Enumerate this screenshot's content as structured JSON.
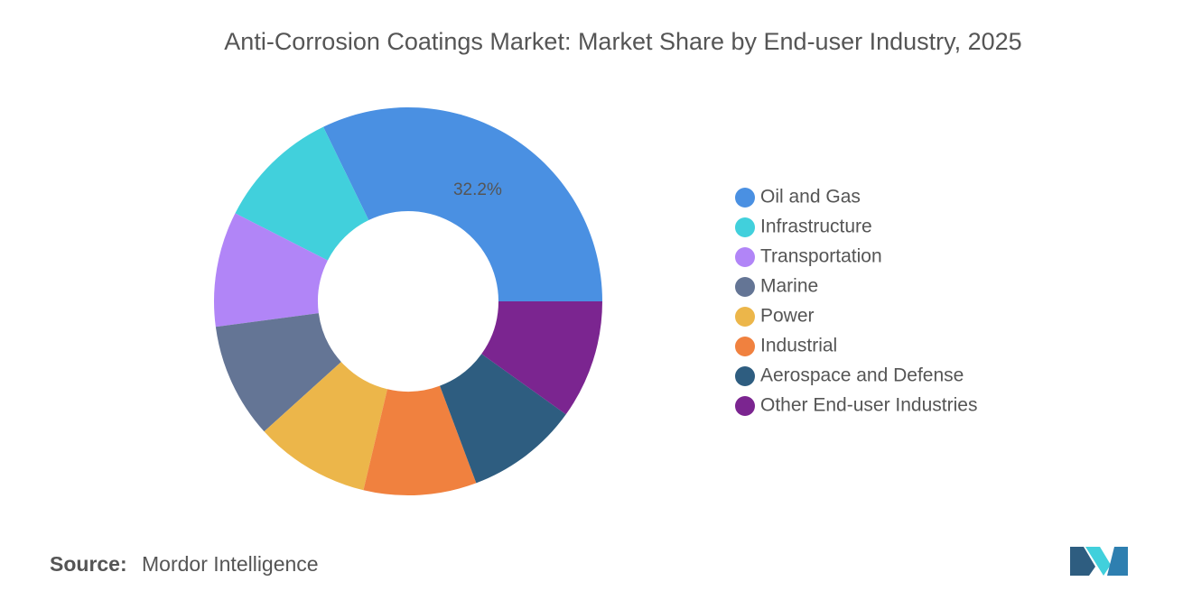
{
  "chart_data": {
    "type": "donut",
    "title": "Anti-Corrosion Coatings Market: Market Share by End-user Industry, 2025",
    "categories": [
      "Oil and Gas",
      "Infrastructure",
      "Transportation",
      "Marine",
      "Power",
      "Industrial",
      "Aerospace and Defense",
      "Other End-user Industries"
    ],
    "values": [
      32.2,
      10.3,
      9.6,
      9.6,
      9.6,
      9.4,
      9.4,
      9.9
    ],
    "value_labels": [
      "32.2%",
      null,
      null,
      null,
      null,
      null,
      null,
      null
    ],
    "colors": [
      "#4a90e2",
      "#41d0dc",
      "#b185f7",
      "#647595",
      "#ecb64a",
      "#f0813f",
      "#2e5d80",
      "#7b2590"
    ],
    "legend": "right"
  },
  "source_label": "Source:",
  "source": "Mordor Intelligence"
}
